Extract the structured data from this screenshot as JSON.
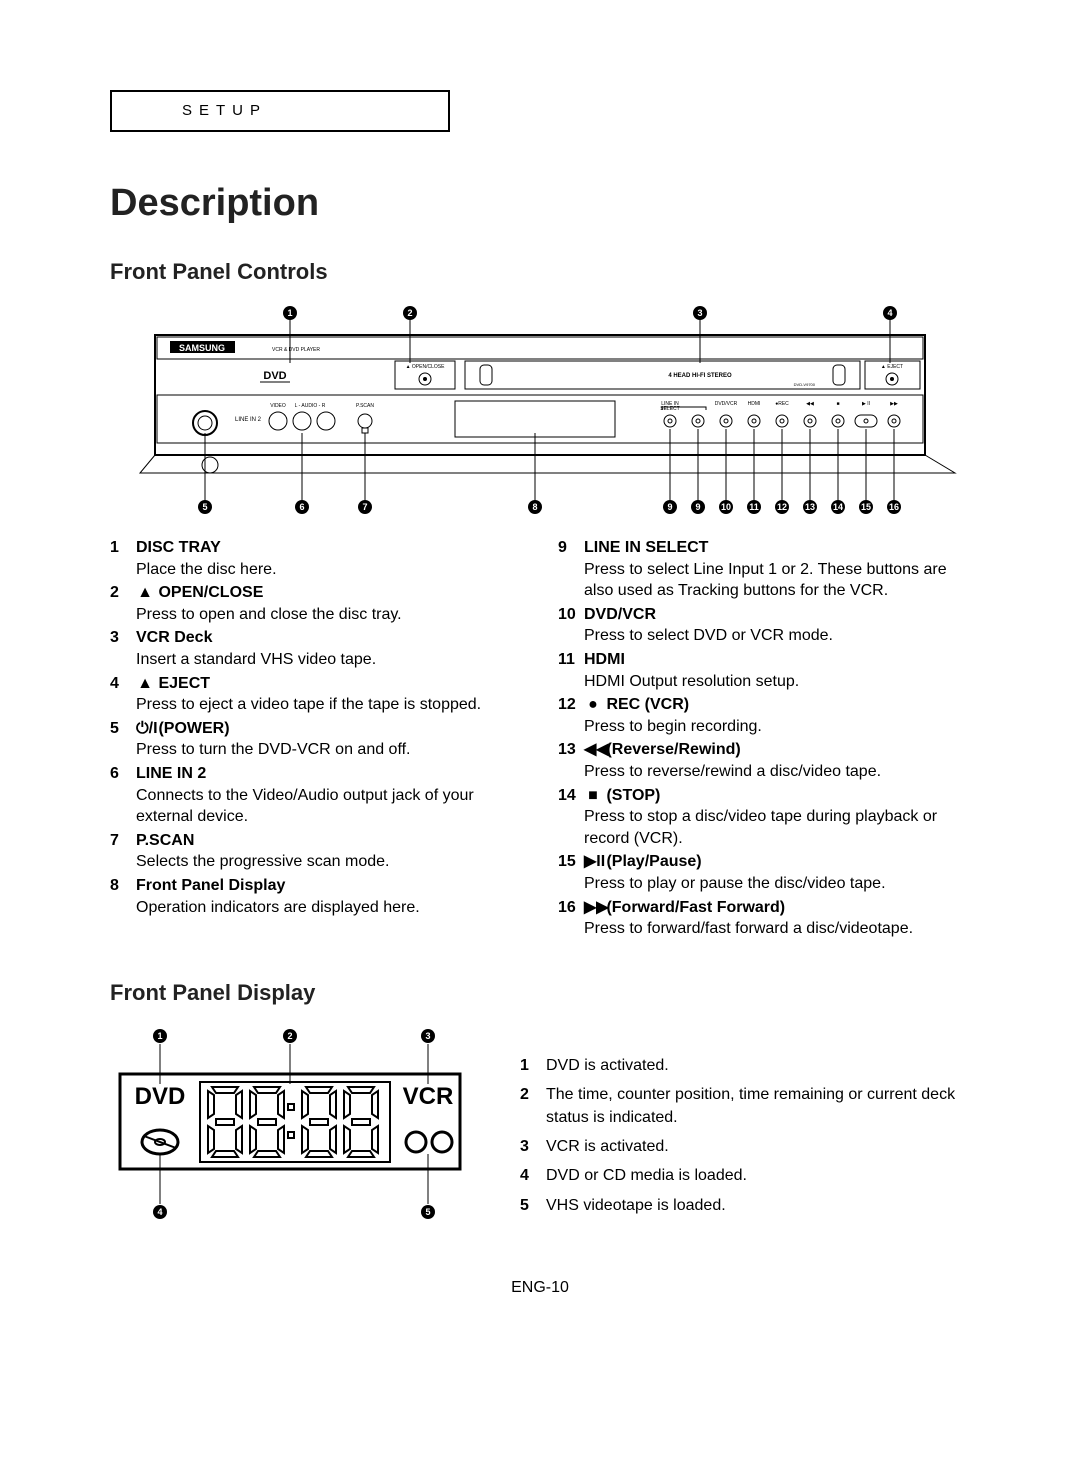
{
  "setup_label": "SETUP",
  "page_title": "Description",
  "section_controls": "Front Panel Controls",
  "section_display": "Front Panel Display",
  "page_num": "ENG-10",
  "panel": {
    "brand": "SAMSUNG",
    "subbrand": "VCR & DVD PLAYER",
    "logo_dvd": "DVD",
    "open_close": "OPEN/CLOSE",
    "eject": "EJECT",
    "stereo": "4 HEAD HI-FI STEREO",
    "model": "DVD-V9700",
    "line_in2": "LINE IN 2",
    "video": "VIDEO",
    "laudio": "L - AUDIO - R",
    "pscan": "P.SCAN",
    "btn_label_line_in": "LINE IN",
    "btn_label_select": "SELECT",
    "btn_dvdvcr": "DVD/VCR",
    "btn_hdmi": "HDMI",
    "btn_rec": "●REC",
    "btn_rew": "◀◀",
    "btn_stop": "■",
    "btn_play": "▶ II",
    "btn_ff": "▶▶"
  },
  "callouts_top": [
    "1",
    "2",
    "3",
    "4"
  ],
  "callouts_bottom_left": [
    "5",
    "6",
    "7",
    "8"
  ],
  "callouts_bottom_right": [
    "9",
    "9",
    "10",
    "11",
    "12",
    "13",
    "14",
    "15",
    "16"
  ],
  "controls_left": [
    {
      "n": "1",
      "title": "DISC TRAY",
      "sym": "",
      "desc": "Place the disc here."
    },
    {
      "n": "2",
      "title": "OPEN/CLOSE",
      "sym": "▲",
      "desc": "Press to open and close the disc tray."
    },
    {
      "n": "3",
      "title": "VCR Deck",
      "sym": "",
      "desc": "Insert a standard VHS video tape."
    },
    {
      "n": "4",
      "title": "EJECT",
      "sym": "▲",
      "desc": "Press to eject a video tape if the tape is stopped."
    },
    {
      "n": "5",
      "title": "(POWER)",
      "sym": "⏻/I",
      "desc": "Press to turn the DVD-VCR on and off."
    },
    {
      "n": "6",
      "title": "LINE IN 2",
      "sym": "",
      "desc": "Connects to the Video/Audio output jack of your external device."
    },
    {
      "n": "7",
      "title": "P.SCAN",
      "sym": "",
      "desc": "Selects the progressive scan mode."
    },
    {
      "n": "8",
      "title": "Front Panel Display",
      "sym": "",
      "desc": "Operation indicators are displayed here."
    }
  ],
  "controls_right": [
    {
      "n": "9",
      "title": "LINE IN SELECT",
      "sym": "",
      "desc": "Press to select Line Input 1 or 2. These buttons are also used as Tracking buttons for the VCR."
    },
    {
      "n": "10",
      "title": "DVD/VCR",
      "sym": "",
      "desc": "Press to select DVD or VCR mode."
    },
    {
      "n": "11",
      "title": "HDMI",
      "sym": "",
      "desc": "HDMI Output resolution setup."
    },
    {
      "n": "12",
      "title": "REC (VCR)",
      "sym": "●",
      "desc": "Press to begin recording."
    },
    {
      "n": "13",
      "title": "(Reverse/Rewind)",
      "sym": "◀◀",
      "desc": "Press to reverse/rewind a disc/video tape."
    },
    {
      "n": "14",
      "title": "(STOP)",
      "sym": "■",
      "desc": "Press to stop a disc/video tape during playback or record (VCR)."
    },
    {
      "n": "15",
      "title": "(Play/Pause)",
      "sym": "▶II",
      "desc": "Press to play or pause the disc/video tape."
    },
    {
      "n": "16",
      "title": "(Forward/Fast Forward)",
      "sym": "▶▶",
      "desc": "Press to forward/fast forward a disc/videotape."
    }
  ],
  "display_fig": {
    "dvd": "DVD",
    "vcr": "VCR",
    "callouts_top": [
      "1",
      "2",
      "3"
    ],
    "callouts_bottom": [
      "4",
      "5"
    ]
  },
  "display_list": [
    {
      "n": "1",
      "desc": "DVD is activated."
    },
    {
      "n": "2",
      "desc": "The time, counter position, time remaining or current deck status is indicated."
    },
    {
      "n": "3",
      "desc": "VCR is activated."
    },
    {
      "n": "4",
      "desc": "DVD or CD media is loaded."
    },
    {
      "n": "5",
      "desc": "VHS videotape is loaded."
    }
  ],
  "colors": {
    "line": "#000000",
    "text": "#000000",
    "dim": "#555555"
  }
}
